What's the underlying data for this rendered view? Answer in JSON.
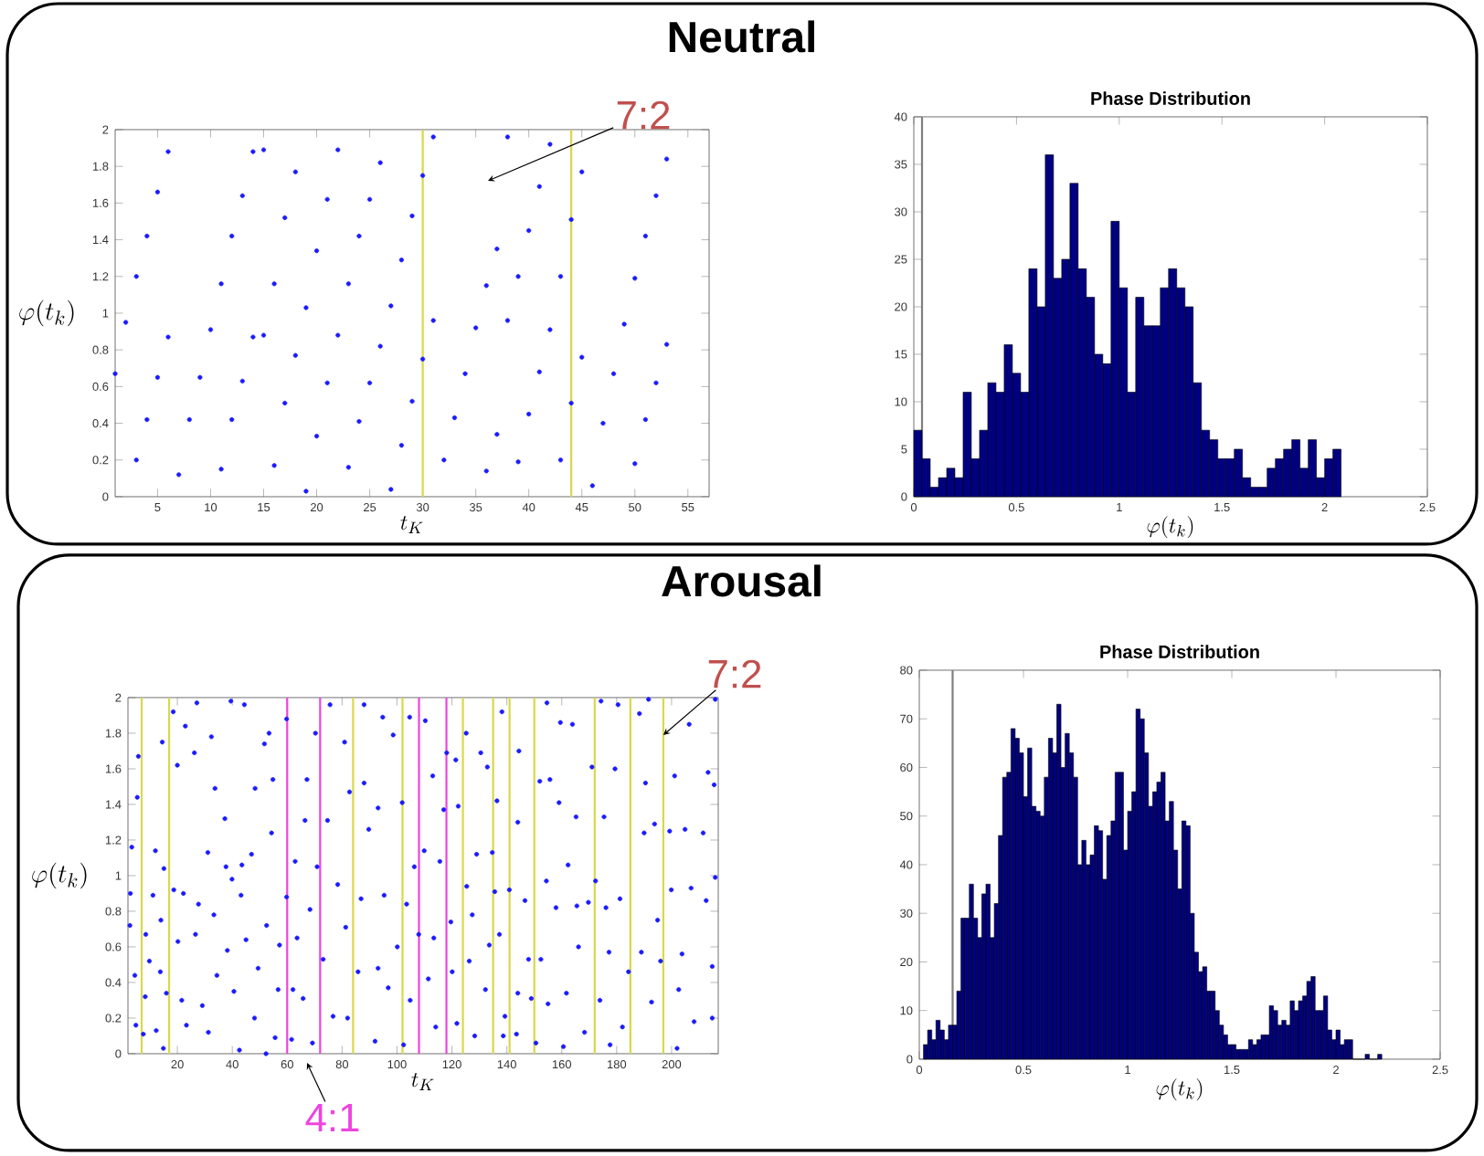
{
  "chart_data": [
    {
      "type": "scatter",
      "title": "Neutral",
      "xlabel": "t_K",
      "ylabel": "\\varphi(t_k)",
      "color": "#1a1aff",
      "marker": "circle",
      "x": [
        1,
        2,
        3,
        3,
        4,
        4,
        5,
        5,
        6,
        6,
        7,
        8,
        9,
        10,
        11,
        11,
        12,
        12,
        13,
        13,
        14,
        14,
        15,
        15,
        16,
        16,
        17,
        17,
        18,
        18,
        19,
        19,
        20,
        20,
        21,
        21,
        22,
        22,
        23,
        23,
        24,
        24,
        25,
        25,
        26,
        26,
        27,
        27,
        28,
        28,
        29,
        29,
        30,
        30,
        31,
        31,
        32,
        33,
        34,
        35,
        36,
        36,
        37,
        37,
        38,
        38,
        39,
        39,
        40,
        40,
        41,
        41,
        42,
        42,
        43,
        43,
        44,
        44,
        45,
        45,
        46,
        47,
        48,
        49,
        50,
        50,
        51,
        51,
        52,
        52,
        53,
        53
      ],
      "values": [
        0.67,
        0.95,
        1.2,
        0.2,
        1.42,
        0.42,
        1.66,
        0.65,
        1.88,
        0.87,
        0.12,
        0.42,
        0.65,
        0.91,
        1.16,
        0.15,
        1.42,
        0.42,
        1.64,
        0.63,
        1.88,
        0.87,
        1.89,
        0.88,
        1.16,
        0.17,
        1.52,
        0.51,
        1.77,
        0.77,
        1.03,
        0.03,
        1.34,
        0.33,
        1.62,
        0.62,
        1.89,
        0.88,
        1.16,
        0.16,
        1.42,
        0.41,
        1.62,
        0.62,
        1.82,
        0.82,
        1.04,
        0.04,
        1.29,
        0.28,
        1.53,
        0.52,
        1.75,
        0.75,
        1.96,
        0.96,
        0.2,
        0.43,
        0.67,
        0.92,
        1.15,
        0.14,
        1.35,
        0.34,
        1.96,
        0.96,
        1.2,
        0.19,
        1.45,
        0.45,
        1.69,
        0.68,
        1.92,
        0.91,
        1.2,
        0.2,
        1.51,
        0.51,
        1.77,
        0.76,
        0.06,
        0.4,
        0.67,
        0.94,
        1.19,
        0.18,
        1.42,
        0.42,
        1.64,
        0.62,
        1.84,
        0.83
      ],
      "xlim": [
        1,
        57
      ],
      "ylim": [
        0,
        2
      ],
      "xticks": [
        5,
        10,
        15,
        20,
        25,
        30,
        35,
        40,
        45,
        50,
        55
      ],
      "yticks": [
        0,
        0.2,
        0.4,
        0.6,
        0.8,
        1,
        1.2,
        1.4,
        1.6,
        1.8,
        2
      ],
      "ref_lines": [
        {
          "axis": "x",
          "value": 30,
          "color": "#d8d84a"
        },
        {
          "axis": "x",
          "value": 44,
          "color": "#d8d84a"
        }
      ],
      "annotations": [
        "7:2"
      ]
    },
    {
      "type": "histogram",
      "title": "Phase Distribution",
      "xlabel": "\\varphi(t_k)",
      "color": "#000080",
      "bins": [
        0,
        0.04,
        0.08,
        0.12,
        0.16,
        0.2,
        0.24,
        0.28,
        0.32,
        0.36,
        0.4,
        0.44,
        0.48,
        0.52,
        0.56,
        0.6,
        0.64,
        0.68,
        0.72,
        0.76,
        0.8,
        0.84,
        0.88,
        0.92,
        0.96,
        1,
        1.04,
        1.08,
        1.12,
        1.16,
        1.2,
        1.24,
        1.28,
        1.32,
        1.36,
        1.4,
        1.44,
        1.48,
        1.52,
        1.56,
        1.6,
        1.64,
        1.68,
        1.72,
        1.76,
        1.8,
        1.84,
        1.88,
        1.92,
        1.96,
        2,
        2.04,
        2.08
      ],
      "values": [
        7,
        4,
        1,
        2,
        3,
        2,
        11,
        4,
        7,
        12,
        11,
        16,
        13,
        11,
        24,
        20,
        36,
        23,
        25,
        33,
        24,
        21,
        15,
        14,
        29,
        22,
        11,
        21,
        18,
        18,
        22,
        24,
        22,
        20,
        12,
        7,
        6,
        4,
        4,
        5,
        2,
        1,
        1,
        3,
        4,
        5,
        6,
        3,
        6,
        2,
        4,
        5
      ],
      "xlim": [
        0,
        2.5
      ],
      "ylim": [
        0,
        40
      ],
      "xticks": [
        0,
        0.5,
        1,
        1.5,
        2,
        2.5
      ],
      "yticks": [
        0,
        5,
        10,
        15,
        20,
        25,
        30,
        35,
        40
      ],
      "ref_lines": [
        {
          "axis": "x",
          "value": 0.04,
          "color": "#808080"
        }
      ]
    },
    {
      "type": "scatter",
      "title": "Arousal",
      "xlabel": "t_K",
      "ylabel": "\\varphi(t_k)",
      "color": "#1a1aff",
      "marker": "circle",
      "x": [
        2.7,
        2.9,
        3.4,
        4.5,
        4.9,
        5.8,
        5.4,
        7.6,
        8.3,
        8.5,
        9.8,
        11.1,
        12.0,
        12.3,
        13.8,
        14.0,
        14.5,
        15.1,
        14.9,
        16,
        18.5,
        18.7,
        20,
        20.2,
        21.6,
        22.2,
        22.9,
        23.3,
        26.2,
        26.6,
        27.1,
        27.7,
        29.1,
        31.1,
        31.3,
        32.4,
        33.3,
        33.7,
        34.4,
        37.3,
        37.7,
        38.2,
        39.5,
        39.9,
        40.6,
        42.6,
        43.2,
        43.5,
        44.4,
        45.0,
        47.0,
        48.1,
        48.3,
        49.4,
        51.7,
        52.3,
        52.5,
        53.4,
        54.3,
        54.8,
        55.6,
        56.7,
        57.2,
        59.8,
        59.8,
        61.6,
        62.1,
        62.9,
        63.6,
        65.8,
        66.5,
        67.2,
        68.3,
        69.2,
        70.3,
        70.9,
        73.1,
        74.7,
        75.6,
        76.7,
        78.4,
        80.9,
        81.3,
        82.0,
        82.7,
        85.8,
        86.9,
        88.0,
        88.0,
        89.7,
        92.0,
        93.1,
        93.1,
        94.8,
        95.3,
        96.8,
        98.6,
        100.1,
        101.9,
        102.4,
        103.5,
        104.6,
        104.8,
        106.3,
        107.9,
        109.9,
        110.3,
        111.4,
        113,
        113.4,
        114.1,
        115.6,
        117.0,
        118.1,
        119.6,
        120.1,
        121.4,
        121.8,
        122.3,
        125.2,
        125.4,
        126.3,
        127.4,
        128.3,
        129.0,
        130.5,
        132.2,
        132.9,
        133.6,
        134.7,
        135.6,
        136.4,
        137.3,
        138.2,
        138.7,
        139.3,
        140.9,
        143.5,
        144.0,
        144,
        144.4,
        146.6,
        147.9,
        148.9,
        150.6,
        152.0,
        152.4,
        154.4,
        154.6,
        155.0,
        155.7,
        157.9,
        159.0,
        159.5,
        160.6,
        161.7,
        162.3,
        163.9,
        165.2,
        165.5,
        166.1,
        168.3,
        169.7,
        171.0,
        172.3,
        173.9,
        174.3,
        175.4,
        176.1,
        177.2,
        177.6,
        179.4,
        180.5,
        181.2,
        182.1,
        184.3,
        188.3,
        189.0,
        190.0,
        190.5,
        191.6,
        192.7,
        193.8,
        194.9,
        196.0,
        199.3,
        199.9,
        201.1,
        202.0,
        202.6,
        203.8,
        204.9,
        206.4,
        207.1,
        208.2,
        211.5,
        212.6,
        213.3,
        214.8,
        215.5,
        215.9,
        215.9,
        214.8
      ],
      "values": [
        0.72,
        0.9,
        1.16,
        0.44,
        0.16,
        1.67,
        1.44,
        0.11,
        0.32,
        0.67,
        0.52,
        0.89,
        1.14,
        0.13,
        0.46,
        0.75,
        1.75,
        1.04,
        0.03,
        0.34,
        1.92,
        0.92,
        1.62,
        0.63,
        0.3,
        0.9,
        1.84,
        0.16,
        1.69,
        0.67,
        1.97,
        0.84,
        0.27,
        1.13,
        0.12,
        1.78,
        0.78,
        1.49,
        0.44,
        1.32,
        1.05,
        0.58,
        1.98,
        0.98,
        0.35,
        0.02,
        0.89,
        1.06,
        1.96,
        0.64,
        1.12,
        0.2,
        1.49,
        0.48,
        1.74,
        0,
        0.72,
        1.8,
        1.24,
        1.54,
        0.09,
        0.36,
        0.61,
        0.88,
        1.88,
        0.08,
        0.36,
        1.08,
        0.65,
        0.31,
        1.31,
        1.54,
        0.81,
        0.06,
        1.8,
        1.05,
        0.53,
        1.31,
        1.96,
        0.21,
        0.95,
        1.75,
        0.71,
        0.2,
        1.47,
        0.46,
        0.87,
        1.96,
        1.52,
        1.26,
        0.07,
        0.48,
        1.38,
        1.89,
        0.89,
        0.37,
        1.79,
        0.6,
        1.41,
        0.05,
        0.84,
        1.89,
        0.3,
        1.05,
        0.67,
        1.14,
        1.87,
        0.42,
        1.56,
        0.65,
        0.15,
        1.08,
        1.37,
        1.69,
        0.74,
        0.46,
        1.65,
        0.17,
        1.39,
        1.8,
        0.94,
        0.52,
        0.78,
        0.1,
        1.12,
        1.69,
        0.36,
        1.61,
        0.61,
        1.13,
        0.91,
        1.42,
        0.67,
        1.92,
        0.1,
        0.21,
        0.92,
        0.11,
        1.3,
        0.34,
        1.7,
        0.86,
        0.53,
        0.31,
        0.06,
        1.53,
        0.53,
        0.97,
        1.97,
        0.28,
        1.54,
        0.82,
        1.41,
        1.86,
        0.04,
        0.34,
        1.06,
        1.85,
        1.33,
        0.83,
        0.6,
        0.12,
        0.85,
        1.61,
        0.97,
        0.3,
        1.98,
        1.33,
        0.82,
        0.57,
        0.05,
        1.6,
        1.96,
        0.87,
        0.15,
        0.46,
        1.91,
        0.57,
        1.24,
        1.52,
        1.99,
        0.29,
        1.29,
        0.75,
        0.52,
        1.25,
        0.92,
        1.56,
        0.03,
        0.36,
        0.56,
        1.26,
        1.85,
        0.93,
        0.18,
        1.24,
        0.86,
        1.58,
        0.2,
        1.51,
        1.99,
        0.99,
        0.49
      ],
      "xlim": [
        2,
        217
      ],
      "ylim": [
        0,
        2
      ],
      "xticks": [
        20,
        40,
        60,
        80,
        100,
        120,
        140,
        160,
        180,
        200
      ],
      "yticks": [
        0,
        0.2,
        0.4,
        0.6,
        0.8,
        1,
        1.2,
        1.4,
        1.6,
        1.8,
        2
      ],
      "ref_lines": [
        {
          "axis": "x",
          "value": 7,
          "color": "#d8d84a"
        },
        {
          "axis": "x",
          "value": 17,
          "color": "#d8d84a"
        },
        {
          "axis": "x",
          "value": 60,
          "color": "#ee44dd"
        },
        {
          "axis": "x",
          "value": 72,
          "color": "#ee44dd"
        },
        {
          "axis": "x",
          "value": 84,
          "color": "#d8d84a"
        },
        {
          "axis": "x",
          "value": 102,
          "color": "#d8d84a"
        },
        {
          "axis": "x",
          "value": 108,
          "color": "#ee44dd"
        },
        {
          "axis": "x",
          "value": 118,
          "color": "#ee44dd"
        },
        {
          "axis": "x",
          "value": 124,
          "color": "#d8d84a"
        },
        {
          "axis": "x",
          "value": 135,
          "color": "#d8d84a"
        },
        {
          "axis": "x",
          "value": 141,
          "color": "#d8d84a"
        },
        {
          "axis": "x",
          "value": 150,
          "color": "#d8d84a"
        },
        {
          "axis": "x",
          "value": 172,
          "color": "#d8d84a"
        },
        {
          "axis": "x",
          "value": 185,
          "color": "#d8d84a"
        },
        {
          "axis": "x",
          "value": 197,
          "color": "#d8d84a"
        }
      ],
      "annotations": [
        {
          "text": "7:2",
          "x": 197,
          "y": 1.79
        },
        "4:1"
      ]
    },
    {
      "type": "histogram",
      "title": "Phase Distribution",
      "xlabel": "\\varphi(t_k)",
      "color": "#000080",
      "bins": [
        0.02,
        0.04,
        0.06,
        0.08,
        0.1,
        0.12,
        0.14,
        0.16,
        0.18,
        0.2,
        0.22,
        0.24,
        0.26,
        0.28,
        0.3,
        0.32,
        0.34,
        0.36,
        0.38,
        0.4,
        0.42,
        0.44,
        0.46,
        0.48,
        0.5,
        0.52,
        0.54,
        0.56,
        0.58,
        0.6,
        0.62,
        0.64,
        0.66,
        0.68,
        0.7,
        0.72,
        0.74,
        0.76,
        0.78,
        0.8,
        0.82,
        0.84,
        0.86,
        0.88,
        0.9,
        0.92,
        0.94,
        0.96,
        0.98,
        1,
        1.02,
        1.04,
        1.06,
        1.08,
        1.1,
        1.12,
        1.14,
        1.16,
        1.18,
        1.2,
        1.22,
        1.24,
        1.26,
        1.28,
        1.3,
        1.32,
        1.34,
        1.36,
        1.38,
        1.4,
        1.42,
        1.44,
        1.46,
        1.48,
        1.5,
        1.52,
        1.54,
        1.56,
        1.58,
        1.6,
        1.62,
        1.64,
        1.66,
        1.68,
        1.7,
        1.72,
        1.74,
        1.76,
        1.78,
        1.8,
        1.82,
        1.84,
        1.86,
        1.88,
        1.9,
        1.92,
        1.94,
        1.96,
        1.98,
        2,
        2.02,
        2.04,
        2.06,
        2.08,
        2.14,
        2.16,
        2.2,
        2.22
      ],
      "values": [
        3,
        6,
        4,
        8,
        6,
        4,
        7,
        7,
        14,
        29,
        29,
        36,
        29,
        25,
        34,
        36,
        25,
        32,
        46,
        58,
        59,
        68,
        66,
        63,
        54,
        64,
        52,
        51,
        50,
        58,
        66,
        63,
        73,
        60,
        67,
        63,
        58,
        40,
        45,
        40,
        42,
        48,
        47,
        37,
        46,
        49,
        59,
        59,
        43,
        51,
        55,
        72,
        70,
        63,
        52,
        55,
        57,
        59,
        49,
        53,
        43,
        35,
        49,
        48,
        30,
        22,
        18,
        19,
        14,
        14,
        10,
        7,
        5,
        3,
        3,
        2,
        2,
        2,
        4,
        3,
        4,
        5,
        5,
        11,
        10,
        7,
        8,
        7,
        12,
        10,
        12,
        13,
        16,
        17,
        10,
        10,
        13,
        6,
        4,
        6,
        3,
        4,
        4,
        0,
        1,
        0,
        1
      ],
      "xlim": [
        0,
        2.5
      ],
      "ylim": [
        0,
        80
      ],
      "xticks": [
        0,
        0.5,
        1,
        1.5,
        2,
        2.5
      ],
      "yticks": [
        0,
        10,
        20,
        30,
        40,
        50,
        60,
        70,
        80
      ],
      "ref_lines": [
        {
          "axis": "x",
          "value": 0.16,
          "color": "#808080"
        }
      ]
    }
  ]
}
